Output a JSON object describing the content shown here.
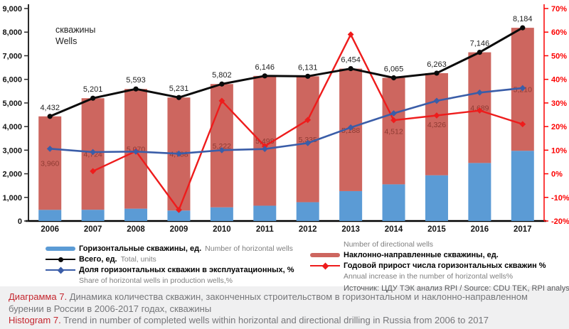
{
  "chart_data": {
    "type": "combo-stacked-bar-line",
    "categories": [
      "2006",
      "2007",
      "2008",
      "2009",
      "2010",
      "2011",
      "2012",
      "2013",
      "2014",
      "2015",
      "2016",
      "2017"
    ],
    "series": [
      {
        "name": "Горизонтальные скважины, ед.",
        "name_en": "Number of horizontal wells",
        "type": "bar",
        "axis": "left",
        "color": "#5B9BD5",
        "values": [
          472,
          477,
          523,
          443,
          580,
          648,
          796,
          1266,
          1553,
          1937,
          2457,
          2974
        ]
      },
      {
        "name": "Наклонно-направленные скважины, ед.",
        "name_en": "Number of directional wells",
        "type": "bar",
        "axis": "left",
        "color": "#CD665F",
        "values": [
          3960,
          4724,
          5070,
          4788,
          5222,
          5498,
          5335,
          5188,
          4512,
          4326,
          4689,
          5210
        ],
        "data_labels": true
      },
      {
        "name": "Всего, ед.",
        "name_en": "Total, units",
        "type": "line",
        "axis": "left",
        "color": "#0A0A0A",
        "marker": "circle",
        "values": [
          4432,
          5201,
          5593,
          5231,
          5802,
          6146,
          6131,
          6454,
          6065,
          6263,
          7146,
          8184
        ],
        "data_labels": true
      },
      {
        "name": "Доля горизонтальных скважин в эксплуатационных, %",
        "name_en": "Share of horizontal wells in production wells,%",
        "type": "line",
        "axis": "right",
        "color": "#3A5DA8",
        "marker": "diamond",
        "values": [
          10.6,
          9.2,
          9.4,
          8.5,
          10.0,
          10.5,
          13.0,
          19.6,
          25.6,
          30.9,
          34.4,
          36.3
        ]
      },
      {
        "name": "Годовой прирост числа горизонтальных скважин %",
        "name_en": "Annual increase in the number of horizontal wells%",
        "type": "line",
        "axis": "right",
        "color": "#EE1C1C",
        "marker": "diamond",
        "values": [
          null,
          1.1,
          9.6,
          -15.3,
          30.9,
          11.7,
          22.8,
          59.0,
          22.7,
          24.7,
          26.8,
          21.0
        ]
      }
    ],
    "left_axis": {
      "min": 0,
      "max": 9000,
      "step": 1000,
      "unit_label_ru": "скважины",
      "unit_label_en": "Wells"
    },
    "right_axis": {
      "min": -20,
      "max": 70,
      "step": 10,
      "suffix": "%",
      "color": "#FC0000"
    },
    "grid": false,
    "legend_position": "bottom",
    "title": ""
  },
  "source": "Источник: ЦДУ ТЭК анализ RPI / Source: CDU TEK, RPI analysis",
  "caption": {
    "ru_label": "Диаграмма 7.",
    "ru_text": "Динамика количества скважин, законченных строительством в горизонтальном и наклонно-направленном бурении в России в 2006-2017 годах, скважины",
    "en_label": "Histogram 7.",
    "en_text": "Trend in number of completed wells within horizontal and directional drilling in Russia from 2006 to 2017"
  }
}
